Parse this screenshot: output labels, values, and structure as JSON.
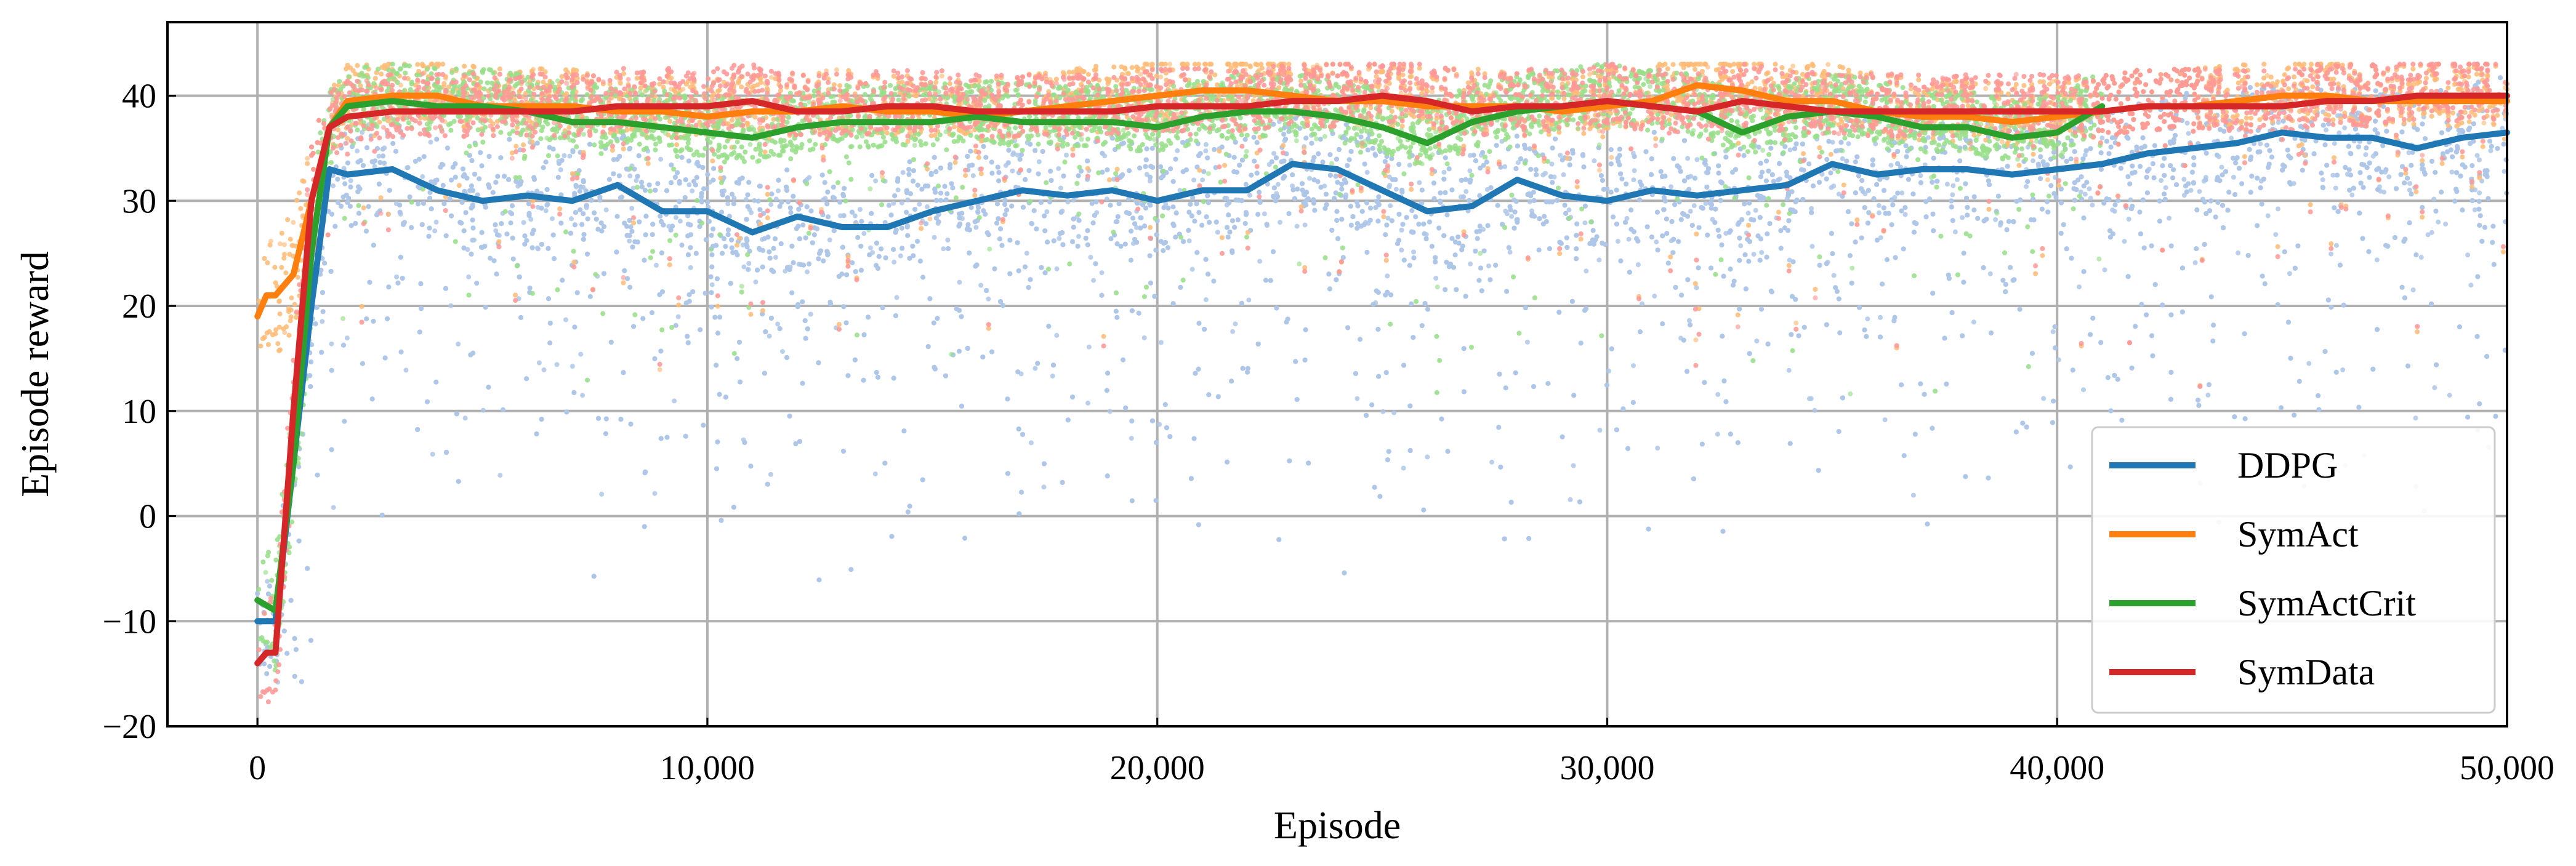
{
  "chart_data": {
    "type": "line",
    "title": "",
    "xlabel": "Episode",
    "ylabel": "Episode reward",
    "xlim": [
      -2000,
      50000
    ],
    "ylim": [
      -20,
      47
    ],
    "xticks": [
      0,
      10000,
      20000,
      30000,
      40000,
      50000
    ],
    "xtick_labels": [
      "0",
      "10,000",
      "20,000",
      "30,000",
      "40,000",
      "50,000"
    ],
    "yticks": [
      -20,
      -10,
      0,
      10,
      20,
      30,
      40
    ],
    "ytick_labels": [
      "−20",
      "−10",
      "0",
      "10",
      "20",
      "30",
      "40"
    ],
    "grid": true,
    "legend_position": "lower-right",
    "raw_points_shown": true,
    "series": [
      {
        "name": "DDPG",
        "color": "#1f77b4",
        "raw_color": "#aec7e8",
        "x": [
          0,
          400,
          800,
          1200,
          1600,
          2000,
          3000,
          4000,
          5000,
          6000,
          7000,
          8000,
          9000,
          10000,
          11000,
          12000,
          13000,
          14000,
          15000,
          16000,
          17000,
          18000,
          19000,
          20000,
          21000,
          22000,
          23000,
          24000,
          25000,
          26000,
          27000,
          28000,
          29000,
          30000,
          31000,
          32000,
          33000,
          34000,
          35000,
          36000,
          37000,
          38000,
          39000,
          40000,
          41000,
          42000,
          43000,
          44000,
          45000,
          46000,
          47000,
          48000,
          49000,
          50000
        ],
        "y": [
          -10,
          -10,
          5,
          20,
          33,
          32.5,
          33,
          31,
          30,
          30.5,
          30,
          31.5,
          29,
          29,
          27,
          28.5,
          27.5,
          27.5,
          29,
          30,
          31,
          30.5,
          31,
          30,
          31,
          31,
          33.5,
          33,
          31,
          29,
          29.5,
          32,
          30.5,
          30,
          31,
          30.5,
          31,
          31.5,
          33.5,
          32.5,
          33,
          33,
          32.5,
          33,
          33.5,
          34.5,
          35,
          35.5,
          36.5,
          36,
          36,
          35,
          36,
          36.5
        ]
      },
      {
        "name": "SymAct",
        "color": "#ff7f0e",
        "raw_color": "#ffbb78",
        "x": [
          0,
          200,
          400,
          800,
          1200,
          1600,
          2000,
          3000,
          4000,
          5000,
          6000,
          7000,
          8000,
          9000,
          10000,
          11000,
          12000,
          13000,
          14000,
          15000,
          16000,
          17000,
          18000,
          19000,
          20000,
          21000,
          22000,
          23000,
          24000,
          25000,
          26000,
          27000,
          28000,
          29000,
          30000,
          31000,
          32000,
          33000,
          34000,
          35000,
          36000,
          37000,
          38000,
          39000,
          40000,
          41000,
          42000,
          43000,
          44000,
          45000,
          46000,
          47000,
          48000,
          49000,
          50000
        ],
        "y": [
          19,
          21,
          21,
          23,
          30,
          37,
          39.5,
          40,
          40,
          39,
          39,
          39,
          38.5,
          38.5,
          38,
          38.5,
          38.5,
          39,
          38.5,
          38.5,
          38,
          38.5,
          39,
          39.5,
          40,
          40.5,
          40.5,
          40,
          39.5,
          39.5,
          39,
          39,
          39,
          38.5,
          39,
          39.5,
          41,
          40.5,
          39.5,
          39.5,
          38.5,
          38,
          38,
          37.5,
          38,
          38.5,
          39,
          39,
          39.5,
          40,
          40,
          39.5,
          39.5,
          39.5,
          39.5
        ]
      },
      {
        "name": "SymActCrit",
        "color": "#2ca02c",
        "raw_color": "#98df8a",
        "x": [
          0,
          400,
          800,
          1200,
          1600,
          2000,
          3000,
          4000,
          5000,
          6000,
          7000,
          8000,
          9000,
          10000,
          11000,
          12000,
          13000,
          14000,
          15000,
          16000,
          17000,
          18000,
          19000,
          20000,
          21000,
          22000,
          23000,
          24000,
          25000,
          26000,
          27000,
          28000,
          29000,
          30000,
          31000,
          32000,
          33000,
          34000,
          35000,
          36000,
          37000,
          38000,
          39000,
          40000,
          41000
        ],
        "y": [
          -8,
          -9,
          5,
          25,
          37,
          39,
          39.5,
          39,
          39,
          38.5,
          37.5,
          37.5,
          37,
          36.5,
          36,
          37,
          37.5,
          37.5,
          37.5,
          38,
          37.5,
          37.5,
          37.5,
          37,
          38,
          38.5,
          38.5,
          38,
          37,
          35.5,
          37.5,
          38.5,
          39,
          39.5,
          39,
          38.5,
          36.5,
          38,
          38.5,
          38,
          37,
          37,
          36,
          36.5,
          39
        ]
      },
      {
        "name": "SymData",
        "color": "#d62728",
        "raw_color": "#ff9896",
        "x": [
          0,
          200,
          400,
          800,
          1200,
          1600,
          2000,
          3000,
          4000,
          5000,
          6000,
          7000,
          8000,
          9000,
          10000,
          11000,
          12000,
          13000,
          14000,
          15000,
          16000,
          17000,
          18000,
          19000,
          20000,
          21000,
          22000,
          23000,
          24000,
          25000,
          26000,
          27000,
          28000,
          29000,
          30000,
          31000,
          32000,
          33000,
          34000,
          35000,
          36000,
          37000,
          38000,
          39000,
          40000,
          41000,
          42000,
          43000,
          44000,
          45000,
          46000,
          47000,
          48000,
          49000,
          50000
        ],
        "y": [
          -14,
          -13,
          -13,
          10,
          30,
          37,
          38,
          38.5,
          38.5,
          38.5,
          38.5,
          38.5,
          39,
          39,
          39,
          39.5,
          38.5,
          38.5,
          39,
          39,
          38.5,
          38.5,
          38.5,
          38.5,
          39,
          39,
          39,
          39.5,
          39.5,
          40,
          39.5,
          38.5,
          39,
          39,
          39.5,
          39,
          38.5,
          39.5,
          39,
          38.5,
          38.5,
          38.5,
          38.5,
          38.5,
          38.5,
          38.5,
          39,
          39,
          39,
          39,
          39.5,
          39.5,
          40,
          40,
          40
        ]
      }
    ]
  }
}
